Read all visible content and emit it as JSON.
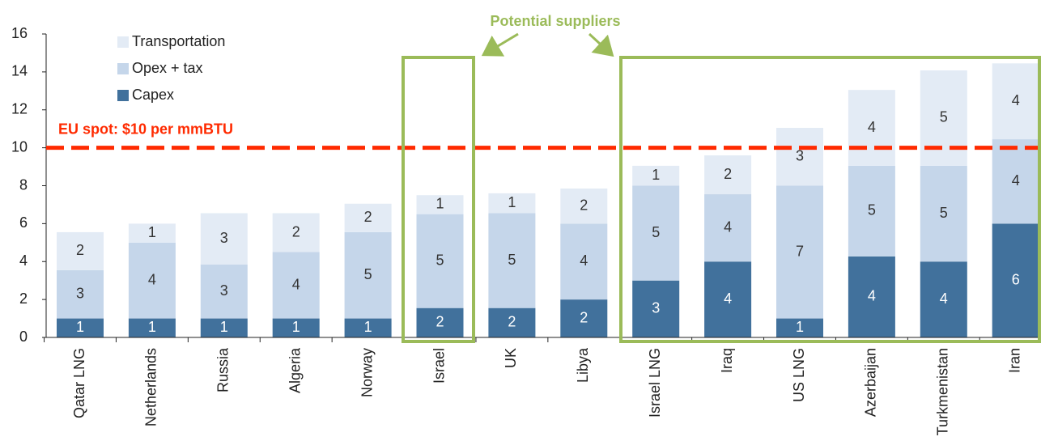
{
  "chart_data": {
    "type": "stacked_bar",
    "categories": [
      "Qatar LNG",
      "Netherlands",
      "Russia",
      "Algeria",
      "Norway",
      "Israel",
      "UK",
      "Libya",
      "Israel LNG",
      "Iraq",
      "US LNG",
      "Azerbaijan",
      "Turkmenistan",
      "Iran"
    ],
    "series": [
      {
        "name": "Capex",
        "color": "#41719c",
        "values": [
          1,
          1,
          1,
          1,
          1,
          1.55,
          1.55,
          2,
          3,
          4,
          1,
          4.27,
          4,
          6
        ],
        "value_labels": [
          "1",
          "1",
          "1",
          "1",
          "1",
          "2",
          "2",
          "2",
          "3",
          "4",
          "1",
          "4",
          "4",
          "6"
        ]
      },
      {
        "name": "Opex + tax",
        "color": "#c5d6ea",
        "values": [
          2.55,
          4,
          2.85,
          3.5,
          4.55,
          4.95,
          5,
          4,
          5,
          3.55,
          7,
          4.78,
          5.05,
          4.45
        ],
        "value_labels": [
          "3",
          "4",
          "3",
          "4",
          "5",
          "5",
          "5",
          "4",
          "5",
          "4",
          "7",
          "5",
          "5",
          "4"
        ]
      },
      {
        "name": "Transportation",
        "color": "#e3ebf5",
        "values": [
          2,
          1,
          2.7,
          2.05,
          1.5,
          1,
          1.05,
          1.85,
          1.05,
          2.05,
          3.05,
          4,
          5.03,
          4
        ],
        "value_labels": [
          "2",
          "1",
          "3",
          "2",
          "2",
          "1",
          "1",
          "2",
          "1",
          "2",
          "3",
          "4",
          "5",
          "4"
        ]
      }
    ],
    "ylim": [
      0,
      16
    ],
    "yticks": [
      0,
      2,
      4,
      6,
      8,
      10,
      12,
      14,
      16
    ],
    "grid": false,
    "reference_line": {
      "value": 10,
      "label": "EU spot: $10 per mmBTU",
      "color": "#ff2a00"
    },
    "annotation": "Potential suppliers"
  }
}
